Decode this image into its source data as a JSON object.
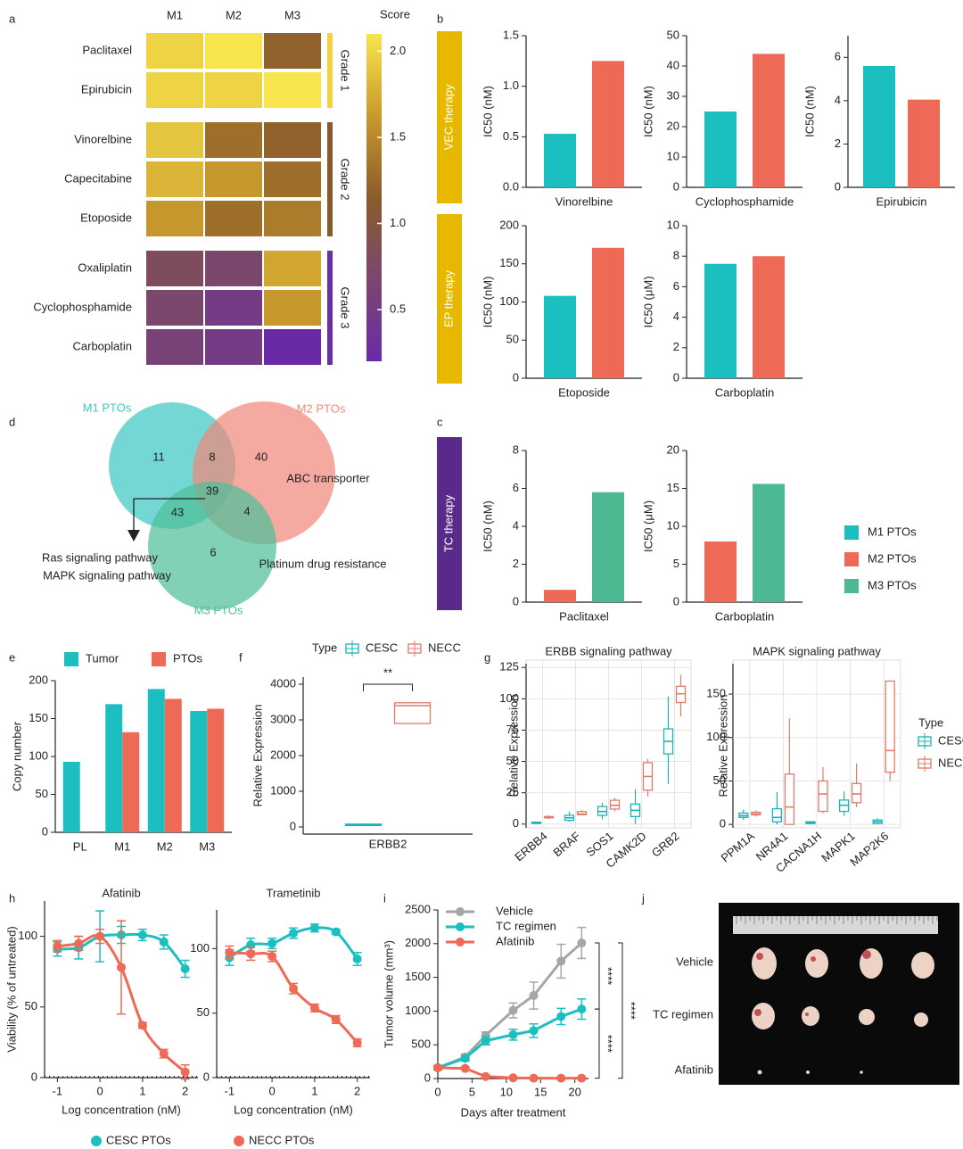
{
  "panel_labels": [
    "a",
    "b",
    "c",
    "d",
    "e",
    "f",
    "g",
    "h",
    "i",
    "j"
  ],
  "therapy_labels": [
    {
      "label": "VEC therapy",
      "color": "#e6b800"
    },
    {
      "label": "EP therapy",
      "color": "#e6b800"
    },
    {
      "label": "TC therapy",
      "color": "#5a2a8a"
    }
  ],
  "photo": {
    "row_labels": [
      "Vehicle",
      "TC regimen",
      "Afatinib"
    ]
  },
  "chart_data": [
    {
      "type": "heatmap",
      "columns": [
        "M1",
        "M2",
        "M3"
      ],
      "groups": [
        {
          "label": "Grade 1",
          "color": "#f3d43c",
          "rows": [
            "Paclitaxel",
            "Epirubicin"
          ],
          "values": [
            [
              2.0,
              2.1,
              1.2
            ],
            [
              2.0,
              2.0,
              2.2
            ]
          ]
        },
        {
          "label": "Grade 2",
          "color": "#8a5a2b",
          "rows": [
            "Vinorelbine",
            "Capecitabine",
            "Etoposide"
          ],
          "values": [
            [
              1.9,
              1.3,
              1.2
            ],
            [
              1.8,
              1.6,
              1.3
            ],
            [
              1.6,
              1.3,
              1.4
            ]
          ]
        },
        {
          "label": "Grade 3",
          "color": "#6a2fa6",
          "rows": [
            "Oxaliplatin",
            "Cyclophosphamide",
            "Carboplatin"
          ],
          "values": [
            [
              0.8,
              0.7,
              1.7
            ],
            [
              0.7,
              0.5,
              1.6
            ],
            [
              0.6,
              0.5,
              0.2
            ]
          ]
        }
      ],
      "colorbar_title": "Score",
      "clim": [
        0.2,
        2.1
      ],
      "cticks": [
        0.5,
        {
          "value": 1,
          "label": "1.0"
        },
        1.5,
        {
          "value": 2,
          "label": "2.0"
        }
      ],
      "colors": [
        "#6a2aa8",
        "#7b4670",
        "#8b5b2b",
        "#c89a2c",
        "#f8e44c"
      ]
    },
    {
      "type": "bar",
      "categories": [
        "Vinorelbine"
      ],
      "ylabel": "IC50 (nM)",
      "ylim": [
        0,
        1.5
      ],
      "yticks": [
        {
          "value": 0,
          "label": "0.0"
        },
        0.5,
        {
          "value": 1,
          "label": "1.0"
        },
        1.5
      ],
      "series": [
        {
          "name": "M1 PTOs",
          "color": "#1bbfc0",
          "values": [
            0.53
          ]
        },
        {
          "name": "M2 PTOs",
          "color": "#ee6a56",
          "values": [
            1.25
          ]
        }
      ]
    },
    {
      "type": "bar",
      "categories": [
        "Cyclophosphamide"
      ],
      "ylabel": "IC50 (nM)",
      "ylim": [
        0,
        50
      ],
      "yticks": [
        0,
        10,
        20,
        30,
        40,
        50
      ],
      "series": [
        {
          "name": "M1 PTOs",
          "color": "#1bbfc0",
          "values": [
            25
          ]
        },
        {
          "name": "M2 PTOs",
          "color": "#ee6a56",
          "values": [
            44
          ]
        }
      ]
    },
    {
      "type": "bar",
      "categories": [
        "Epirubicin"
      ],
      "ylabel": "IC50 (nM)",
      "ylim": [
        0,
        7
      ],
      "yticks": [
        0,
        2,
        4,
        6
      ],
      "series": [
        {
          "name": "M1 PTOs",
          "color": "#1bbfc0",
          "values": [
            5.6
          ]
        },
        {
          "name": "M2 PTOs",
          "color": "#ee6a56",
          "values": [
            4.05
          ]
        }
      ]
    },
    {
      "type": "bar",
      "categories": [
        "Etoposide"
      ],
      "ylabel": "IC50 (nM)",
      "ylim": [
        0,
        200
      ],
      "yticks": [
        0,
        50,
        100,
        150,
        200
      ],
      "series": [
        {
          "name": "M1 PTOs",
          "color": "#1bbfc0",
          "values": [
            108
          ]
        },
        {
          "name": "M2 PTOs",
          "color": "#ee6a56",
          "values": [
            171
          ]
        }
      ]
    },
    {
      "type": "bar",
      "categories": [
        "Carboplatin"
      ],
      "ylabel": "IC50 (μM)",
      "ylim": [
        0,
        10
      ],
      "yticks": [
        0,
        2,
        4,
        6,
        8,
        10
      ],
      "series": [
        {
          "name": "M1 PTOs",
          "color": "#1bbfc0",
          "values": [
            7.5
          ]
        },
        {
          "name": "M2 PTOs",
          "color": "#ee6a56",
          "values": [
            8.0
          ]
        }
      ]
    },
    {
      "type": "bar",
      "categories": [
        "Paclitaxel"
      ],
      "ylabel": "IC50 (nM)",
      "ylim": [
        0,
        8
      ],
      "yticks": [
        0,
        2,
        4,
        6,
        8
      ],
      "series": [
        {
          "name": "M2 PTOs",
          "color": "#ee6a56",
          "values": [
            0.65
          ]
        },
        {
          "name": "M3 PTOs",
          "color": "#4cb993",
          "values": [
            5.8
          ]
        }
      ]
    },
    {
      "type": "bar",
      "categories": [
        "Carboplatin"
      ],
      "ylabel": "IC50 (μM)",
      "ylim": [
        0,
        20
      ],
      "yticks": [
        0,
        5,
        10,
        15,
        20
      ],
      "series": [
        {
          "name": "M2 PTOs",
          "color": "#ee6a56",
          "values": [
            8.0
          ]
        },
        {
          "name": "M3 PTOs",
          "color": "#4cb993",
          "values": [
            15.6
          ]
        }
      ]
    },
    {
      "type": "venn",
      "sets": [
        {
          "name": "M1 PTOs",
          "color": "#3ec8c2"
        },
        {
          "name": "M2 PTOs",
          "color": "#f0897c"
        },
        {
          "name": "M3 PTOs",
          "color": "#4fbf98"
        }
      ],
      "regions": [
        11,
        8,
        40,
        39,
        43,
        4,
        6
      ],
      "annotations": [
        "ABC transporter",
        "Ras signaling pathway",
        "MAPK signaling pathway",
        "Platinum drug resistance"
      ]
    },
    {
      "type": "bar",
      "categories": [
        "PL",
        "M1",
        "M2",
        "M3"
      ],
      "ylabel": "Copy number",
      "ylim": [
        0,
        200
      ],
      "yticks": [
        0,
        50,
        100,
        150,
        200
      ],
      "series": [
        {
          "name": "Tumor",
          "color": "#1bbfc0",
          "values": [
            93,
            169,
            189,
            160
          ]
        },
        {
          "name": "PTOs",
          "color": "#ee6a56",
          "values": [
            null,
            132,
            176,
            163
          ]
        }
      ]
    },
    {
      "type": "box",
      "categories": [
        "ERBB2"
      ],
      "ylabel": "Relative Expression",
      "ylim": [
        -200,
        4200
      ],
      "yticks": [
        0,
        1000,
        2000,
        3000,
        4000
      ],
      "legend_title": "Type",
      "annotation": "**",
      "series": [
        {
          "name": "CESC",
          "color": "#1bb3b8",
          "min": [
            20
          ],
          "q1": [
            40
          ],
          "median": [
            60
          ],
          "q3": [
            80
          ],
          "max": [
            100
          ]
        },
        {
          "name": "NECC",
          "color": "#e07a6a",
          "min": [
            2900
          ],
          "q1": [
            2900
          ],
          "median": [
            3400
          ],
          "q3": [
            3480
          ],
          "max": [
            3500
          ]
        }
      ]
    },
    {
      "type": "box",
      "title": "ERBB signaling pathway",
      "categories": [
        "ERBB4",
        "BRAF",
        "SOS1",
        "CAMK2D",
        "GRB2"
      ],
      "ylabel": "Relative Expression",
      "ylim": [
        -3,
        128
      ],
      "yticks": [
        0,
        25,
        50,
        75,
        100,
        125
      ],
      "grid": true,
      "series": [
        {
          "name": "CESC",
          "color": "#1bb3b8",
          "min": [
            0,
            2,
            4,
            0,
            32
          ],
          "q1": [
            0.5,
            3,
            7,
            6,
            56
          ],
          "median": [
            1,
            5,
            10,
            11,
            66
          ],
          "q3": [
            1.5,
            7,
            14,
            16,
            76
          ],
          "max": [
            2,
            10,
            17,
            28,
            102
          ]
        },
        {
          "name": "NECC",
          "color": "#e07a6a",
          "min": [
            4,
            7,
            10,
            22,
            86
          ],
          "q1": [
            5,
            7.5,
            12,
            27,
            97
          ],
          "median": [
            5.5,
            8,
            15,
            38,
            104
          ],
          "q3": [
            6,
            10,
            19,
            49,
            110
          ],
          "max": [
            7,
            11,
            21,
            52,
            119
          ]
        }
      ]
    },
    {
      "type": "box",
      "title": "MAPK signaling pathway",
      "categories": [
        "PPM1A",
        "NR4A1",
        "CACNA1H",
        "MAPK1",
        "MAP2K6"
      ],
      "ylabel": "Relative Expression",
      "ylim": [
        -4,
        185
      ],
      "yticks": [
        0,
        50,
        100,
        150
      ],
      "grid": true,
      "legend_title": "Type",
      "series": [
        {
          "name": "CESC",
          "color": "#1bb3b8",
          "min": [
            5,
            0,
            0,
            10,
            0
          ],
          "q1": [
            8,
            3,
            1,
            15,
            1
          ],
          "median": [
            10,
            8,
            2,
            22,
            3
          ],
          "q3": [
            13,
            18,
            3,
            28,
            5
          ],
          "max": [
            17,
            37,
            4,
            38,
            7
          ]
        },
        {
          "name": "NECC",
          "color": "#e07a6a",
          "min": [
            9,
            0,
            13,
            20,
            50
          ],
          "q1": [
            11,
            0,
            15,
            25,
            60
          ],
          "median": [
            12,
            20,
            35,
            35,
            85
          ],
          "q3": [
            14,
            58,
            50,
            47,
            165
          ],
          "max": [
            16,
            122,
            66,
            70,
            165
          ]
        }
      ]
    },
    {
      "type": "scatter",
      "title": "Afatinib",
      "xlabel": "Log concentration (nM)",
      "ylabel": "Viability (% of untreated)",
      "x": [
        -1,
        -0.5,
        0,
        0.5,
        1,
        1.5,
        2
      ],
      "xlim": [
        -1.3,
        2.3
      ],
      "xticks": [
        -1,
        0,
        1,
        2
      ],
      "ylim": [
        0,
        125
      ],
      "yticks": [
        0,
        50,
        100
      ],
      "series": [
        {
          "name": "CESC PTOs",
          "color": "#1bbfc0",
          "values": [
            91,
            92,
            100,
            101,
            101,
            96,
            77
          ],
          "errors": [
            5,
            8,
            18,
            6,
            4,
            5,
            6
          ]
        },
        {
          "name": "NECC PTOs",
          "color": "#ee6a56",
          "values": [
            93,
            95,
            100,
            78,
            37,
            17,
            4
          ],
          "errors": [
            4,
            5,
            5,
            33,
            2,
            3,
            5
          ]
        }
      ]
    },
    {
      "type": "scatter",
      "title": "Trametinib",
      "xlabel": "Log concentration (nM)",
      "x": [
        -1,
        -0.5,
        0,
        0.5,
        1,
        1.5,
        2
      ],
      "xlim": [
        -1.3,
        2.3
      ],
      "xticks": [
        -1,
        0,
        1,
        2
      ],
      "ylim": [
        0,
        130
      ],
      "yticks": [
        0,
        50,
        100
      ],
      "series": [
        {
          "name": "CESC PTOs",
          "color": "#1bbfc0",
          "values": [
            93,
            103,
            104,
            112,
            116,
            113,
            92
          ],
          "errors": [
            6,
            5,
            4,
            4,
            3,
            2,
            5
          ]
        },
        {
          "name": "NECC PTOs",
          "color": "#ee6a56",
          "values": [
            97,
            96,
            94,
            69,
            54,
            45,
            27
          ],
          "errors": [
            5,
            5,
            4,
            4,
            3,
            3,
            3
          ]
        }
      ]
    },
    {
      "type": "line",
      "xlabel": "Days after treatment",
      "ylabel": "Tumor volume (mm³)",
      "x": [
        0,
        4,
        7,
        11,
        14,
        18,
        21
      ],
      "xlim": [
        0,
        22
      ],
      "xticks": [
        0,
        5,
        10,
        15,
        20
      ],
      "ylim": [
        0,
        2500
      ],
      "yticks": [
        0,
        500,
        1000,
        1500,
        2000,
        2500
      ],
      "annotations": [
        "****",
        "****",
        "****"
      ],
      "series": [
        {
          "name": "Vehicle",
          "color": "#a6a6a6",
          "values": [
            160,
            320,
            640,
            1010,
            1230,
            1740,
            2010
          ],
          "errors": [
            30,
            40,
            50,
            110,
            200,
            250,
            230
          ]
        },
        {
          "name": "TC regimen",
          "color": "#1bbfc0",
          "values": [
            160,
            300,
            560,
            650,
            710,
            920,
            1030
          ],
          "errors": [
            30,
            40,
            60,
            80,
            100,
            120,
            150
          ]
        },
        {
          "name": "Afatinib",
          "color": "#ee6a56",
          "values": [
            160,
            150,
            30,
            10,
            5,
            5,
            5
          ],
          "errors": [
            30,
            20,
            10,
            5,
            5,
            5,
            5
          ]
        }
      ]
    }
  ]
}
